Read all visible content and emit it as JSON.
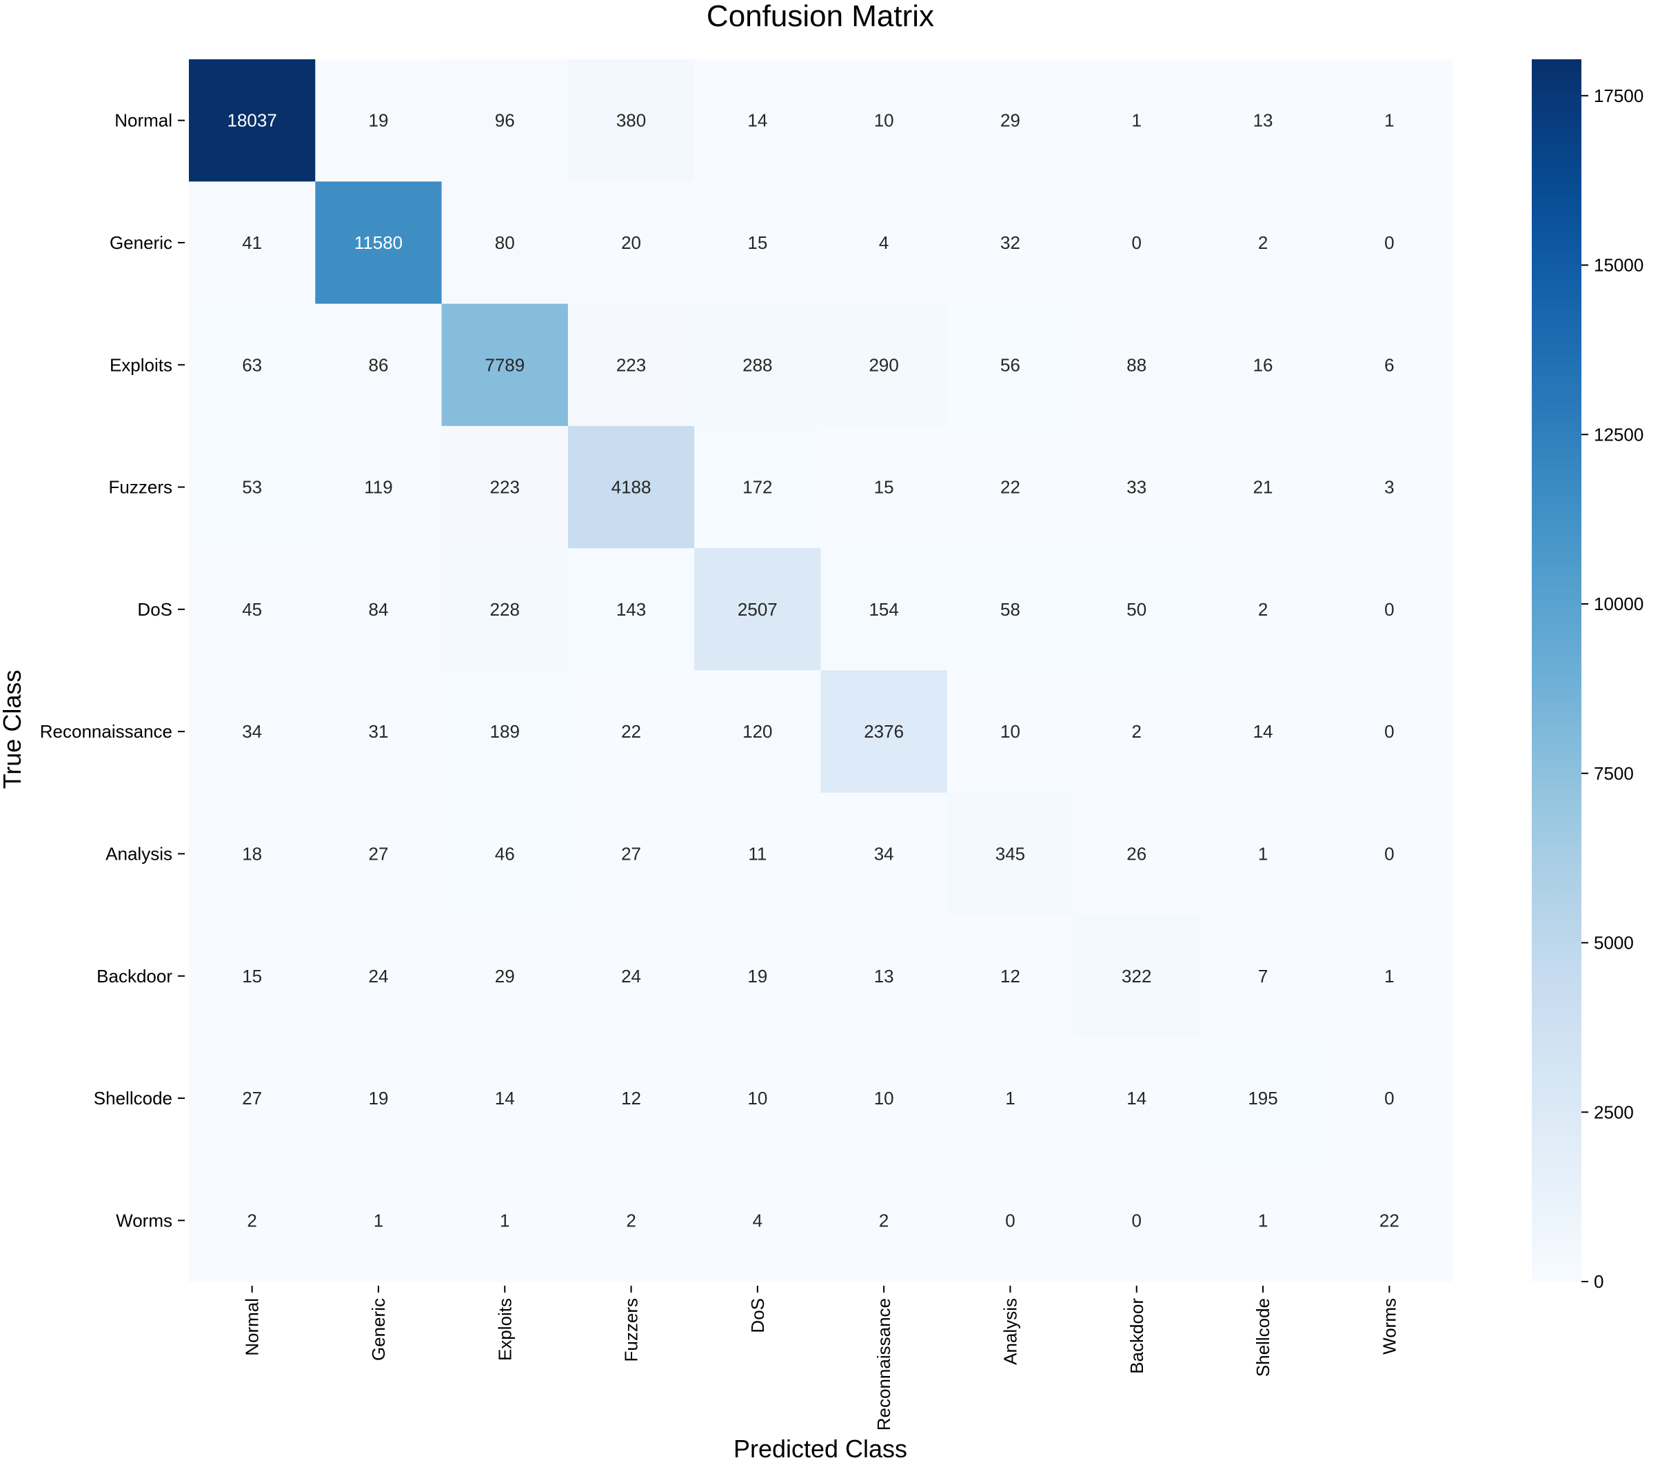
{
  "chart_data": {
    "type": "heatmap",
    "title": "Confusion Matrix",
    "xlabel": "Predicted Class",
    "ylabel": "True Class",
    "row_labels": [
      "Normal",
      "Generic",
      "Exploits",
      "Fuzzers",
      "DoS",
      "Reconnaissance",
      "Analysis",
      "Backdoor",
      "Shellcode",
      "Worms"
    ],
    "col_labels": [
      "Normal",
      "Generic",
      "Exploits",
      "Fuzzers",
      "DoS",
      "Reconnaissance",
      "Analysis",
      "Backdoor",
      "Shellcode",
      "Worms"
    ],
    "values": [
      [
        18037,
        19,
        96,
        380,
        14,
        10,
        29,
        1,
        13,
        1
      ],
      [
        41,
        11580,
        80,
        20,
        15,
        4,
        32,
        0,
        2,
        0
      ],
      [
        63,
        86,
        7789,
        223,
        288,
        290,
        56,
        88,
        16,
        6
      ],
      [
        53,
        119,
        223,
        4188,
        172,
        15,
        22,
        33,
        21,
        3
      ],
      [
        45,
        84,
        228,
        143,
        2507,
        154,
        58,
        50,
        2,
        0
      ],
      [
        34,
        31,
        189,
        22,
        120,
        2376,
        10,
        2,
        14,
        0
      ],
      [
        18,
        27,
        46,
        27,
        11,
        34,
        345,
        26,
        1,
        0
      ],
      [
        15,
        24,
        29,
        24,
        19,
        13,
        12,
        322,
        7,
        1
      ],
      [
        27,
        19,
        14,
        12,
        10,
        10,
        1,
        14,
        195,
        0
      ],
      [
        2,
        1,
        1,
        2,
        4,
        2,
        0,
        0,
        1,
        22
      ]
    ],
    "colormap": "Blues",
    "colorbar": {
      "vmin": 0,
      "vmax": 18037,
      "ticks": [
        0,
        2500,
        5000,
        7500,
        10000,
        12500,
        15000,
        17500
      ],
      "tick_labels": [
        "0",
        "2500",
        "5000",
        "7500",
        "10000",
        "12500",
        "15000",
        "17500"
      ]
    }
  }
}
